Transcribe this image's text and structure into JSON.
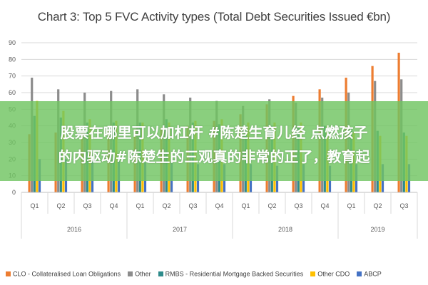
{
  "chart_data": {
    "type": "bar",
    "title": "Chart 3: Top 5 FVC Activity types (Total Debt Securities Issued €bn)",
    "ylim": [
      0,
      90
    ],
    "yticks": [
      0,
      10,
      20,
      30,
      40,
      50,
      60,
      70,
      80,
      90
    ],
    "grid": true,
    "legend_position": "bottom",
    "categories": [
      "Q1",
      "Q2",
      "Q3",
      "Q4",
      "Q1",
      "Q2",
      "Q3",
      "Q4",
      "Q1",
      "Q2",
      "Q3",
      "Q4",
      "Q1",
      "Q2",
      "Q3"
    ],
    "groups": [
      {
        "label": "2016",
        "span": 4
      },
      {
        "label": "2017",
        "span": 4
      },
      {
        "label": "2018",
        "span": 4
      },
      {
        "label": "2019",
        "span": 3
      }
    ],
    "series": [
      {
        "name": "CLO - Collateralised Loan Obligations",
        "color": "#ED7D31",
        "values": [
          35,
          36,
          36,
          37,
          38,
          39,
          40,
          43,
          47,
          53,
          58,
          62,
          69,
          76,
          84
        ]
      },
      {
        "name": "Other",
        "color": "#8C8C8C",
        "values": [
          69,
          62,
          60,
          61,
          62,
          59,
          57,
          55,
          52,
          56,
          54,
          57,
          60,
          67,
          68
        ]
      },
      {
        "name": "RMBS - Residential Mortgage Backed Securities",
        "color": "#2E8B8B",
        "values": [
          46,
          45,
          42,
          42,
          42,
          44,
          42,
          41,
          40,
          40,
          39,
          40,
          38,
          37,
          36
        ]
      },
      {
        "name": "Other CDO",
        "color": "#FFC000",
        "values": [
          55,
          49,
          44,
          43,
          42,
          42,
          43,
          44,
          42,
          42,
          42,
          40,
          36,
          34,
          34
        ]
      },
      {
        "name": "ABCP",
        "color": "#4472C4",
        "values": [
          20,
          20,
          19,
          19,
          18,
          18,
          17,
          17,
          17,
          16,
          17,
          16,
          17,
          17,
          17
        ]
      }
    ]
  },
  "overlay": {
    "line1": "股票在哪里可以加杠杆 #陈楚生育儿经 点燃孩子",
    "line2": "的内驱动#陈楚生的三观真的非常的正了，教育起"
  }
}
